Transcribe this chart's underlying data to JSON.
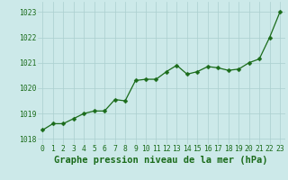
{
  "x": [
    0,
    1,
    2,
    3,
    4,
    5,
    6,
    7,
    8,
    9,
    10,
    11,
    12,
    13,
    14,
    15,
    16,
    17,
    18,
    19,
    20,
    21,
    22,
    23
  ],
  "y": [
    1018.35,
    1018.6,
    1018.6,
    1018.8,
    1019.0,
    1019.1,
    1019.1,
    1019.55,
    1019.5,
    1020.3,
    1020.35,
    1020.35,
    1020.65,
    1020.9,
    1020.55,
    1020.65,
    1020.85,
    1020.8,
    1020.7,
    1020.75,
    1021.0,
    1021.15,
    1022.0,
    1023.0
  ],
  "ylim": [
    1017.8,
    1023.4
  ],
  "yticks": [
    1018,
    1019,
    1020,
    1021,
    1022,
    1023
  ],
  "xlim": [
    -0.5,
    23.5
  ],
  "xticks": [
    0,
    1,
    2,
    3,
    4,
    5,
    6,
    7,
    8,
    9,
    10,
    11,
    12,
    13,
    14,
    15,
    16,
    17,
    18,
    19,
    20,
    21,
    22,
    23
  ],
  "line_color": "#1a6b1a",
  "marker_color": "#1a6b1a",
  "bg_color": "#cce9e9",
  "grid_color": "#aacfcf",
  "xlabel": "Graphe pression niveau de la mer (hPa)",
  "xlabel_color": "#1a6b1a",
  "tick_color": "#1a6b1a",
  "tick_fontsize": 5.8,
  "xlabel_fontsize": 7.5,
  "marker_size": 2.5,
  "linewidth": 0.9
}
